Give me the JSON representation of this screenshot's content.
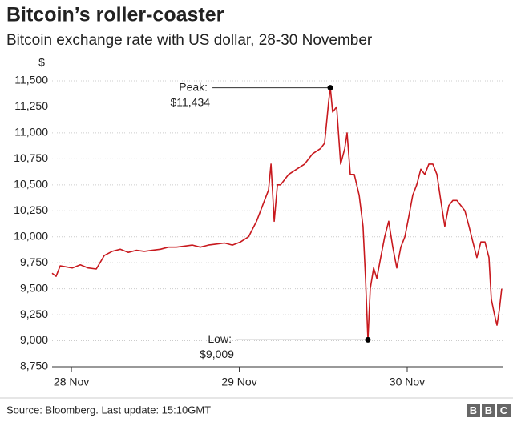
{
  "chart_data": {
    "type": "line",
    "title": "Bitcoin’s roller-coaster",
    "subtitle": "Bitcoin exchange rate with US dollar, 28-30 November",
    "y_unit": "$",
    "source": "Source: Bloomberg. Last update: 15:10GMT",
    "logo": [
      "B",
      "B",
      "C"
    ],
    "xlim": [
      -0.115,
      2.573
    ],
    "xticks": [
      {
        "value": 0,
        "label": "28 Nov"
      },
      {
        "value": 1,
        "label": "29 Nov"
      },
      {
        "value": 2,
        "label": "30 Nov"
      }
    ],
    "ylim": [
      8750,
      11500
    ],
    "yticks": [
      {
        "value": 8750,
        "label": "8,750"
      },
      {
        "value": 9000,
        "label": "9,000"
      },
      {
        "value": 9250,
        "label": "9,250"
      },
      {
        "value": 9500,
        "label": "9,500"
      },
      {
        "value": 9750,
        "label": "9,750"
      },
      {
        "value": 10000,
        "label": "10,000"
      },
      {
        "value": 10250,
        "label": "10,250"
      },
      {
        "value": 10500,
        "label": "10,500"
      },
      {
        "value": 10750,
        "label": "10,750"
      },
      {
        "value": 11000,
        "label": "11,000"
      },
      {
        "value": 11250,
        "label": "11,250"
      },
      {
        "value": 11500,
        "label": "11,500"
      }
    ],
    "grid": true,
    "x": [
      -0.115,
      -0.091,
      -0.067,
      0.005,
      0.053,
      0.1,
      0.148,
      0.196,
      0.243,
      0.291,
      0.339,
      0.387,
      0.434,
      0.482,
      0.53,
      0.578,
      0.625,
      0.673,
      0.721,
      0.768,
      0.816,
      0.864,
      0.912,
      0.959,
      1.007,
      1.055,
      1.103,
      1.15,
      1.174,
      1.189,
      1.208,
      1.227,
      1.246,
      1.294,
      1.341,
      1.389,
      1.437,
      1.484,
      1.508,
      1.532,
      1.542,
      1.556,
      1.58,
      1.604,
      1.628,
      1.642,
      1.661,
      1.685,
      1.714,
      1.737,
      1.752,
      1.766,
      1.78,
      1.8,
      1.819,
      1.842,
      1.866,
      1.89,
      1.914,
      1.938,
      1.962,
      1.986,
      2.01,
      2.033,
      2.057,
      2.081,
      2.105,
      2.129,
      2.153,
      2.177,
      2.2,
      2.224,
      2.248,
      2.272,
      2.296,
      2.32,
      2.344,
      2.368,
      2.391,
      2.415,
      2.439,
      2.463,
      2.487,
      2.501,
      2.52,
      2.535,
      2.549,
      2.563
    ],
    "series": [
      {
        "color": "#c8191e",
        "values": [
          9650,
          9620,
          9720,
          9700,
          9730,
          9700,
          9690,
          9820,
          9860,
          9880,
          9850,
          9870,
          9860,
          9870,
          9880,
          9900,
          9900,
          9910,
          9920,
          9900,
          9920,
          9930,
          9940,
          9920,
          9950,
          10000,
          10150,
          10350,
          10450,
          10700,
          10150,
          10500,
          10500,
          10600,
          10650,
          10700,
          10800,
          10850,
          10900,
          11300,
          11434,
          11200,
          11250,
          10700,
          10850,
          11000,
          10600,
          10600,
          10400,
          10100,
          9600,
          9009,
          9500,
          9700,
          9600,
          9800,
          10000,
          10150,
          9900,
          9700,
          9900,
          10000,
          10200,
          10400,
          10500,
          10650,
          10600,
          10700,
          10700,
          10600,
          10350,
          10100,
          10300,
          10350,
          10350,
          10300,
          10250,
          10100,
          9950,
          9800,
          9950,
          9950,
          9800,
          9400,
          9250,
          9150,
          9300,
          9500
        ]
      }
    ],
    "annotations": [
      {
        "label": "Peak:",
        "value_label": "$11,434",
        "x": 1.542,
        "y": 11434
      },
      {
        "label": "Low:",
        "value_label": "$9,009",
        "x": 1.766,
        "y": 9009
      }
    ]
  }
}
